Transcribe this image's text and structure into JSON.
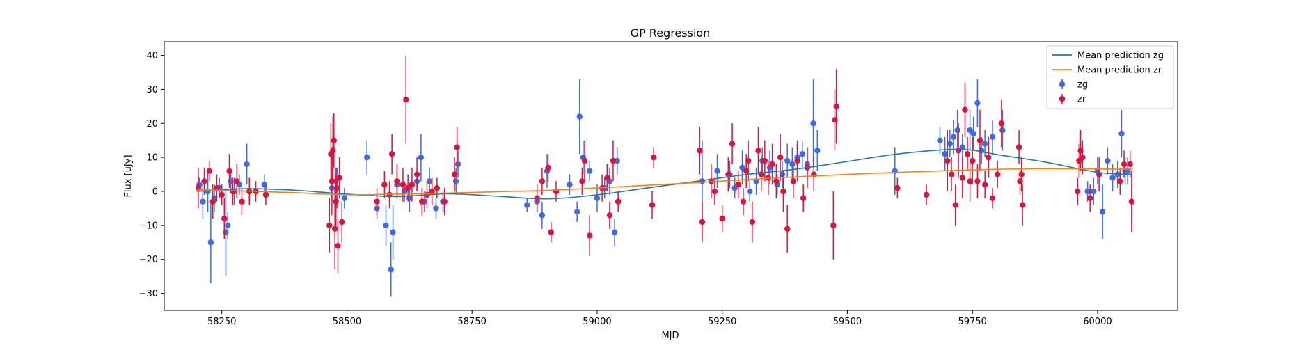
{
  "chart_data": {
    "type": "scatter",
    "title": "GP Regression",
    "xlabel": "MJD",
    "ylabel": "Flux [uJy]",
    "xlim": [
      58135,
      60160
    ],
    "ylim": [
      -35,
      44
    ],
    "xticks": [
      58250,
      58500,
      58750,
      59000,
      59250,
      59500,
      59750,
      60000
    ],
    "yticks": [
      -30,
      -20,
      -10,
      0,
      10,
      20,
      30,
      40
    ],
    "grid": false,
    "legend": {
      "placement": "top-right",
      "entries": [
        "Mean prediction zg",
        "Mean prediction zr",
        "zg",
        "zr"
      ]
    },
    "lines": [
      {
        "name": "Mean prediction zg",
        "color": "#1f77b4",
        "x": [
          58200,
          58300,
          58400,
          58500,
          58600,
          58700,
          58800,
          58900,
          59000,
          59100,
          59200,
          59300,
          59400,
          59500,
          59600,
          59700,
          59750,
          59800,
          59900,
          60000,
          60070
        ],
        "y": [
          0.0,
          0.8,
          0.3,
          -0.8,
          -1.5,
          -0.7,
          -1.4,
          -2.2,
          -1.0,
          1.0,
          3.0,
          5.0,
          6.6,
          8.8,
          11.0,
          12.3,
          12.1,
          10.8,
          8.5,
          5.6,
          5.0
        ]
      },
      {
        "name": "Mean prediction zr",
        "color": "#ff7f0e",
        "x": [
          58200,
          58300,
          58400,
          58500,
          58600,
          58700,
          58800,
          58900,
          59000,
          59100,
          59200,
          59300,
          59400,
          59500,
          59600,
          59700,
          59800,
          59900,
          60000,
          60070
        ],
        "y": [
          0.5,
          0.1,
          -0.4,
          -1.0,
          -0.8,
          -0.5,
          -0.1,
          0.3,
          1.0,
          1.8,
          2.6,
          3.5,
          4.3,
          5.0,
          5.6,
          6.1,
          6.5,
          6.7,
          6.6,
          6.5
        ]
      }
    ],
    "series": [
      {
        "name": "zg",
        "color": "#4169e1",
        "x": [
          58205,
          58212,
          58222,
          58228,
          58235,
          58245,
          58258,
          58262,
          58268,
          58275,
          58285,
          58300,
          58335,
          58470,
          58478,
          58495,
          58540,
          58560,
          58578,
          58588,
          58592,
          58600,
          58615,
          58625,
          58640,
          58648,
          58655,
          58665,
          58678,
          58692,
          58718,
          58722,
          58860,
          58880,
          58890,
          58900,
          58945,
          58960,
          58965,
          58972,
          58985,
          59000,
          59015,
          59025,
          59035,
          59040,
          59210,
          59240,
          59265,
          59275,
          59290,
          59305,
          59318,
          59330,
          59345,
          59360,
          59370,
          59380,
          59390,
          59400,
          59410,
          59420,
          59432,
          59440,
          59595,
          59685,
          59695,
          59705,
          59712,
          59720,
          59730,
          59745,
          59752,
          59760,
          59768,
          59775,
          59790,
          59810,
          59960,
          59980,
          59992,
          60000,
          60010,
          60020,
          60030,
          60040,
          60048,
          60055,
          60060
        ],
        "y": [
          2,
          -3,
          0,
          -15,
          -2,
          1,
          -12,
          -10,
          3,
          0,
          2,
          8,
          2,
          1,
          3,
          -2,
          10,
          -5,
          -10,
          -23,
          -12,
          2,
          0,
          -2,
          3,
          10,
          -3,
          3,
          -5,
          -3,
          3,
          8,
          -4,
          -3,
          -7,
          6,
          2,
          -6,
          22,
          10,
          6,
          -2,
          1,
          3,
          -12,
          9,
          3,
          6,
          5,
          1,
          7,
          0,
          3,
          9,
          7,
          2,
          5,
          9,
          8,
          10,
          11,
          8,
          20,
          12,
          6,
          15,
          11,
          14,
          16,
          18,
          13,
          18,
          17,
          26,
          12,
          14,
          16,
          18,
          0,
          0,
          0,
          6,
          -6,
          9,
          4,
          5,
          17,
          6,
          6
        ],
        "err": [
          2,
          5,
          6,
          12,
          4,
          3,
          13,
          4,
          3,
          4,
          3,
          6,
          3,
          4,
          4,
          3,
          5,
          3,
          6,
          8,
          8,
          4,
          3,
          4,
          3,
          7,
          3,
          4,
          3,
          3,
          4,
          4,
          2,
          3,
          4,
          5,
          3,
          3,
          11,
          5,
          3,
          4,
          3,
          4,
          4,
          4,
          12,
          5,
          4,
          3,
          5,
          3,
          4,
          4,
          5,
          3,
          4,
          5,
          5,
          4,
          4,
          5,
          13,
          6,
          7,
          4,
          5,
          4,
          5,
          6,
          4,
          6,
          5,
          7,
          4,
          4,
          5,
          6,
          3,
          3,
          4,
          4,
          8,
          4,
          4,
          4,
          7,
          4,
          4
        ]
      },
      {
        "name": "zr",
        "color": "#dc143c",
        "x": [
          58203,
          58215,
          58225,
          58232,
          58240,
          58250,
          58255,
          58265,
          58272,
          58280,
          58290,
          58305,
          58318,
          58338,
          58465,
          58468,
          58470,
          58472,
          58474,
          58476,
          58478,
          58480,
          58482,
          58485,
          58490,
          58560,
          58575,
          58585,
          58590,
          58600,
          58612,
          58618,
          58622,
          58630,
          58640,
          58650,
          58660,
          58670,
          58680,
          58695,
          58715,
          58720,
          58880,
          58890,
          58902,
          58908,
          58918,
          58970,
          58975,
          58985,
          59010,
          59020,
          59025,
          59032,
          59042,
          59110,
          59113,
          59205,
          59210,
          59228,
          59235,
          59250,
          59262,
          59270,
          59282,
          59292,
          59298,
          59302,
          59310,
          59322,
          59328,
          59335,
          59342,
          59350,
          59358,
          59366,
          59372,
          59380,
          59392,
          59400,
          59412,
          59420,
          59433,
          59472,
          59475,
          59478,
          59600,
          59658,
          59700,
          59708,
          59716,
          59722,
          59730,
          59735,
          59740,
          59745,
          59750,
          59760,
          59765,
          59775,
          59782,
          59790,
          59800,
          59808,
          59843,
          59845,
          59848,
          59850,
          59960,
          59963,
          59966,
          59970,
          59985,
          60003,
          60045,
          60053,
          60065,
          60068
        ],
        "y": [
          1,
          3,
          6,
          -3,
          1,
          -1,
          -8,
          6,
          0,
          3,
          -3,
          0,
          0,
          -1,
          -10,
          11,
          3,
          12,
          15,
          -11,
          -3,
          1,
          -16,
          4,
          -9,
          -3,
          2,
          -1,
          11,
          3,
          2,
          27,
          1,
          2,
          5,
          -3,
          -1,
          0,
          1,
          -3,
          5,
          13,
          -2,
          3,
          7,
          -12,
          0,
          3,
          9,
          -13,
          1,
          4,
          -7,
          9,
          -3,
          -4,
          10,
          12,
          -9,
          3,
          0,
          -8,
          5,
          14,
          2,
          -3,
          6,
          9,
          -9,
          12,
          5,
          9,
          4,
          8,
          3,
          10,
          0,
          -11,
          3,
          9,
          -2,
          7,
          5,
          -10,
          21,
          25,
          1,
          -1,
          9,
          5,
          -4,
          12,
          4,
          24,
          11,
          3,
          9,
          3,
          15,
          2,
          10,
          -2,
          5,
          20,
          13,
          3,
          5,
          -4,
          0,
          9,
          12,
          10,
          -2,
          5,
          3,
          8,
          8,
          -3
        ],
        "err": [
          6,
          4,
          3,
          5,
          4,
          3,
          6,
          5,
          4,
          5,
          4,
          4,
          3,
          3,
          8,
          9,
          10,
          10,
          8,
          12,
          8,
          6,
          8,
          6,
          6,
          4,
          4,
          4,
          6,
          5,
          5,
          13,
          4,
          5,
          5,
          4,
          4,
          4,
          3,
          4,
          5,
          6,
          4,
          4,
          4,
          3,
          3,
          4,
          6,
          6,
          4,
          4,
          4,
          6,
          3,
          4,
          3,
          7,
          6,
          5,
          4,
          4,
          5,
          6,
          4,
          4,
          5,
          6,
          6,
          7,
          5,
          6,
          5,
          6,
          5,
          7,
          6,
          7,
          5,
          6,
          4,
          6,
          5,
          10,
          9,
          11,
          3,
          3,
          9,
          5,
          6,
          8,
          6,
          8,
          5,
          6,
          7,
          5,
          9,
          4,
          6,
          3,
          4,
          7,
          5,
          4,
          5,
          6,
          4,
          5,
          6,
          5,
          4,
          5,
          4,
          4,
          4,
          9
        ]
      }
    ]
  }
}
